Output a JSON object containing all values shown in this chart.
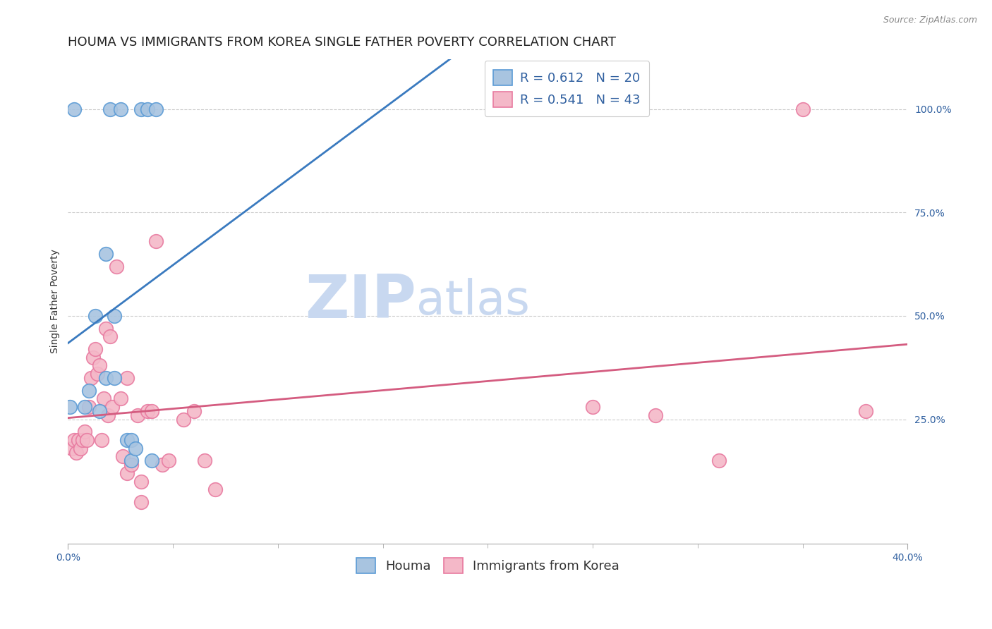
{
  "title": "HOUMA VS IMMIGRANTS FROM KOREA SINGLE FATHER POVERTY CORRELATION CHART",
  "source": "Source: ZipAtlas.com",
  "ylabel": "Single Father Poverty",
  "right_yticks": [
    "100.0%",
    "75.0%",
    "50.0%",
    "25.0%"
  ],
  "right_ytick_vals": [
    1.0,
    0.75,
    0.5,
    0.25
  ],
  "legend_label1": "R = 0.612   N = 20",
  "legend_label2": "R = 0.541   N = 43",
  "legend_series1": "Houma",
  "legend_series2": "Immigrants from Korea",
  "houma_color": "#a8c4e0",
  "houma_edge_color": "#5b9bd5",
  "korea_color": "#f4b8c8",
  "korea_edge_color": "#e87aa0",
  "trend_houma_color": "#3a7abf",
  "trend_korea_color": "#d45c80",
  "background_color": "#ffffff",
  "watermark_zip": "ZIP",
  "watermark_atlas": "atlas",
  "watermark_color_zip": "#c8d8f0",
  "watermark_color_atlas": "#c8d8f0",
  "houma_x": [
    0.001,
    0.003,
    0.008,
    0.01,
    0.013,
    0.015,
    0.018,
    0.018,
    0.02,
    0.022,
    0.022,
    0.025,
    0.028,
    0.03,
    0.03,
    0.032,
    0.035,
    0.038,
    0.04,
    0.042
  ],
  "houma_y": [
    0.28,
    1.0,
    0.28,
    0.32,
    0.5,
    0.27,
    0.65,
    0.35,
    1.0,
    0.5,
    0.35,
    1.0,
    0.2,
    0.2,
    0.15,
    0.18,
    1.0,
    1.0,
    0.15,
    1.0
  ],
  "korea_x": [
    0.002,
    0.003,
    0.004,
    0.005,
    0.006,
    0.007,
    0.008,
    0.009,
    0.01,
    0.011,
    0.012,
    0.013,
    0.014,
    0.015,
    0.016,
    0.017,
    0.018,
    0.019,
    0.02,
    0.021,
    0.023,
    0.025,
    0.026,
    0.028,
    0.028,
    0.03,
    0.033,
    0.035,
    0.035,
    0.038,
    0.04,
    0.042,
    0.045,
    0.048,
    0.055,
    0.06,
    0.065,
    0.07,
    0.25,
    0.28,
    0.31,
    0.35,
    0.38
  ],
  "korea_y": [
    0.18,
    0.2,
    0.17,
    0.2,
    0.18,
    0.2,
    0.22,
    0.2,
    0.28,
    0.35,
    0.4,
    0.42,
    0.36,
    0.38,
    0.2,
    0.3,
    0.47,
    0.26,
    0.45,
    0.28,
    0.62,
    0.3,
    0.16,
    0.35,
    0.12,
    0.14,
    0.26,
    0.05,
    0.1,
    0.27,
    0.27,
    0.68,
    0.14,
    0.15,
    0.25,
    0.27,
    0.15,
    0.08,
    0.28,
    0.26,
    0.15,
    1.0,
    0.27
  ],
  "xlim": [
    0.0,
    0.4
  ],
  "ylim": [
    -0.05,
    1.12
  ],
  "grid_color": "#cccccc",
  "title_fontsize": 13,
  "axis_label_fontsize": 10,
  "tick_fontsize": 10,
  "legend_fontsize": 13
}
